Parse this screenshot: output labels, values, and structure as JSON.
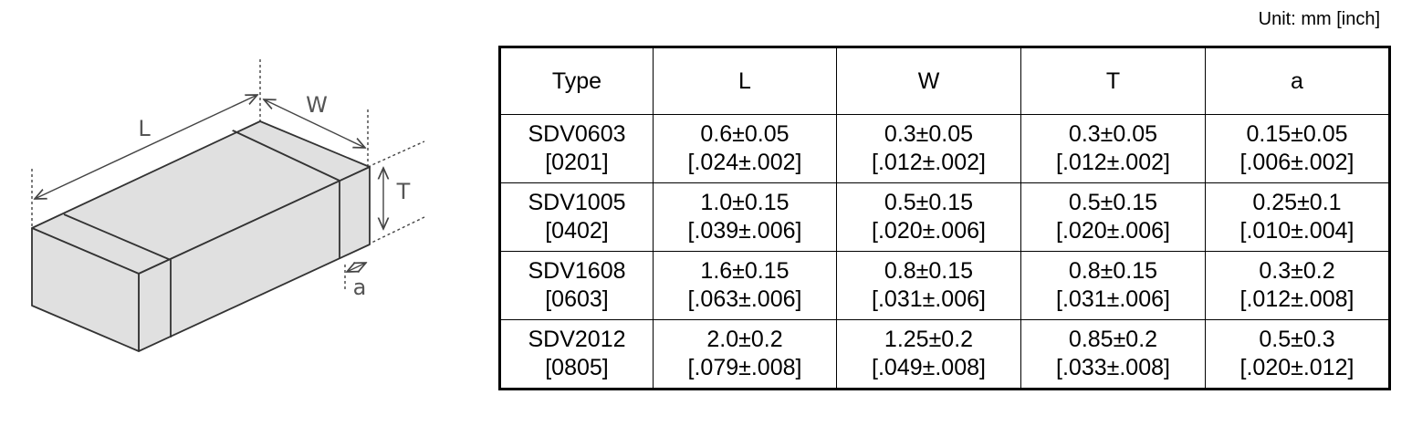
{
  "diagram": {
    "labels": {
      "L": "L",
      "W": "W",
      "T": "T",
      "a": "a"
    }
  },
  "unit": "Unit: mm [inch]",
  "table": {
    "headers": [
      "Type",
      "L",
      "W",
      "T",
      "a"
    ],
    "rows": [
      [
        [
          "SDV0603",
          "[0201]"
        ],
        [
          "0.6±0.05",
          "[.024±.002]"
        ],
        [
          "0.3±0.05",
          "[.012±.002]"
        ],
        [
          "0.3±0.05",
          "[.012±.002]"
        ],
        [
          "0.15±0.05",
          "[.006±.002]"
        ]
      ],
      [
        [
          "SDV1005",
          "[0402]"
        ],
        [
          "1.0±0.15",
          "[.039±.006]"
        ],
        [
          "0.5±0.15",
          "[.020±.006]"
        ],
        [
          "0.5±0.15",
          "[.020±.006]"
        ],
        [
          "0.25±0.1",
          "[.010±.004]"
        ]
      ],
      [
        [
          "SDV1608",
          "[0603]"
        ],
        [
          "1.6±0.15",
          "[.063±.006]"
        ],
        [
          "0.8±0.15",
          "[.031±.006]"
        ],
        [
          "0.8±0.15",
          "[.031±.006]"
        ],
        [
          "0.3±0.2",
          "[.012±.008]"
        ]
      ],
      [
        [
          "SDV2012",
          "[0805]"
        ],
        [
          "2.0±0.2",
          "[.079±.008]"
        ],
        [
          "1.25±0.2",
          "[.049±.008]"
        ],
        [
          "0.85±0.2",
          "[.033±.008]"
        ],
        [
          "0.5±0.3",
          "[.020±.012]"
        ]
      ]
    ]
  }
}
